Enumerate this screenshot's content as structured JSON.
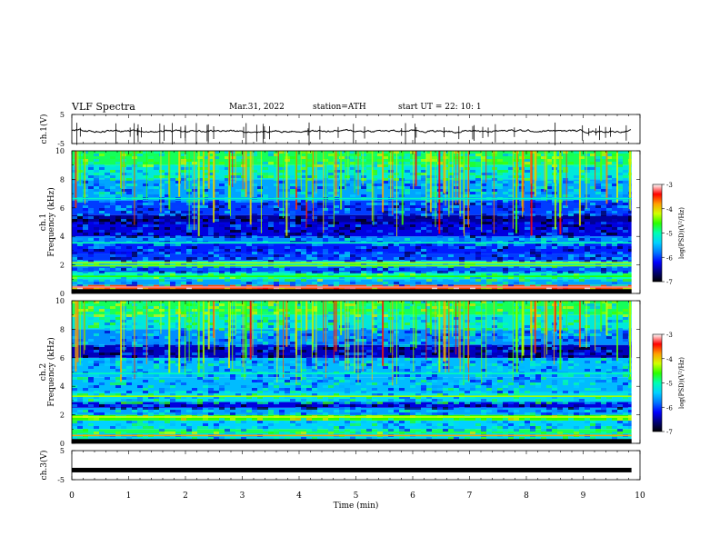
{
  "header": {
    "title": "VLF  Spectra",
    "date": "Mar.31, 2022",
    "station": "station=ATH",
    "start": "start  UT  =    22: 10: 1"
  },
  "colormap": {
    "stops": [
      "#000000",
      "#00007a",
      "#0000ff",
      "#0078ff",
      "#00d2ff",
      "#00ffb4",
      "#2aff00",
      "#d2ff00",
      "#ffa000",
      "#ff0000",
      "#ffffff"
    ]
  },
  "chart_data": [
    {
      "type": "line",
      "name": "ch1-waveform",
      "ylabel": "ch.1(V)",
      "ylim": [
        -5,
        5
      ],
      "yticks": [
        "5",
        "-5"
      ],
      "baseline": -0.7,
      "xlim": [
        0,
        10
      ],
      "data_end": 9.85,
      "color": "#000000"
    },
    {
      "type": "heatmap",
      "name": "ch1-spectrogram",
      "ylabel": "ch.1",
      "ylabel2": "Frequency  (kHz)",
      "ylim": [
        0,
        10
      ],
      "yticks": [
        "0",
        "2",
        "4",
        "6",
        "8",
        "10"
      ],
      "xlim": [
        0,
        10
      ],
      "data_end": 9.85,
      "colorbar": {
        "label": "log(PSD)(V²/Hz)",
        "range": [
          -7,
          -3
        ],
        "ticks": [
          "-3",
          "-4",
          "-5",
          "-6",
          "-7"
        ]
      },
      "bands": [
        {
          "f": [
            0.0,
            0.3
          ],
          "v": -7.0
        },
        {
          "f": [
            0.3,
            0.6
          ],
          "v": -3.6
        },
        {
          "f": [
            0.6,
            1.0
          ],
          "v": -5.6
        },
        {
          "f": [
            1.0,
            1.5
          ],
          "v": -5.0
        },
        {
          "f": [
            1.5,
            1.9
          ],
          "v": -5.9
        },
        {
          "f": [
            1.9,
            2.3
          ],
          "v": -5.2
        },
        {
          "f": [
            2.3,
            2.8
          ],
          "v": -6.0
        },
        {
          "f": [
            2.8,
            3.5
          ],
          "v": -6.1
        },
        {
          "f": [
            3.5,
            4.0
          ],
          "v": -5.7
        },
        {
          "f": [
            4.0,
            5.0
          ],
          "v": -6.3
        },
        {
          "f": [
            5.0,
            5.5
          ],
          "v": -6.5
        },
        {
          "f": [
            5.5,
            6.5
          ],
          "v": -6.0
        },
        {
          "f": [
            6.5,
            8.0
          ],
          "v": -5.6
        },
        {
          "f": [
            8.0,
            9.0
          ],
          "v": -5.2
        },
        {
          "f": [
            9.0,
            10.0
          ],
          "v": -4.8
        }
      ],
      "lines": [
        {
          "f": 0.45,
          "v": -3.2
        },
        {
          "f": 1.2,
          "v": -4.6
        },
        {
          "f": 1.95,
          "v": -4.4
        },
        {
          "f": 2.15,
          "v": -4.3
        },
        {
          "f": 3.55,
          "v": -5.0
        },
        {
          "f": 6.65,
          "v": -5.1
        }
      ]
    },
    {
      "type": "heatmap",
      "name": "ch2-spectrogram",
      "ylabel": "ch.2",
      "ylabel2": "Frequency  (kHz)",
      "ylim": [
        0,
        10
      ],
      "yticks": [
        "0",
        "2",
        "4",
        "6",
        "8",
        "10"
      ],
      "xlim": [
        0,
        10
      ],
      "data_end": 9.85,
      "colorbar": {
        "label": "log(PSD)(V²/Hz)",
        "range": [
          -7,
          -3
        ],
        "ticks": [
          "-3",
          "-4",
          "-5",
          "-6",
          "-7"
        ]
      },
      "bands": [
        {
          "f": [
            0.0,
            0.3
          ],
          "v": -7.0
        },
        {
          "f": [
            0.3,
            0.7
          ],
          "v": -5.3
        },
        {
          "f": [
            0.7,
            1.0
          ],
          "v": -4.8
        },
        {
          "f": [
            1.0,
            1.6
          ],
          "v": -5.4
        },
        {
          "f": [
            1.6,
            2.0
          ],
          "v": -4.6
        },
        {
          "f": [
            2.0,
            2.5
          ],
          "v": -5.6
        },
        {
          "f": [
            2.5,
            2.9
          ],
          "v": -6.3
        },
        {
          "f": [
            2.9,
            3.6
          ],
          "v": -5.3
        },
        {
          "f": [
            3.6,
            4.6
          ],
          "v": -5.5
        },
        {
          "f": [
            4.6,
            6.0
          ],
          "v": -5.5
        },
        {
          "f": [
            6.0,
            6.9
          ],
          "v": -6.4
        },
        {
          "f": [
            6.9,
            8.0
          ],
          "v": -5.7
        },
        {
          "f": [
            8.0,
            9.0
          ],
          "v": -5.2
        },
        {
          "f": [
            9.0,
            10.0
          ],
          "v": -4.8
        }
      ],
      "lines": [
        {
          "f": 0.55,
          "v": -3.8
        },
        {
          "f": 1.85,
          "v": -4.2
        },
        {
          "f": 3.3,
          "v": -4.3
        },
        {
          "f": 4.9,
          "v": -5.0
        }
      ]
    },
    {
      "type": "line",
      "name": "ch3-waveform",
      "ylabel": "ch.3(V)",
      "ylim": [
        -5,
        5
      ],
      "yticks": [
        "5",
        "-5"
      ],
      "baseline": -1.7,
      "xlim": [
        0,
        10
      ],
      "data_end": 9.85,
      "color": "#000000",
      "xlabel": "Time  (min)",
      "xticks": [
        "0",
        "1",
        "2",
        "3",
        "4",
        "5",
        "6",
        "7",
        "8",
        "9",
        "10"
      ]
    }
  ]
}
